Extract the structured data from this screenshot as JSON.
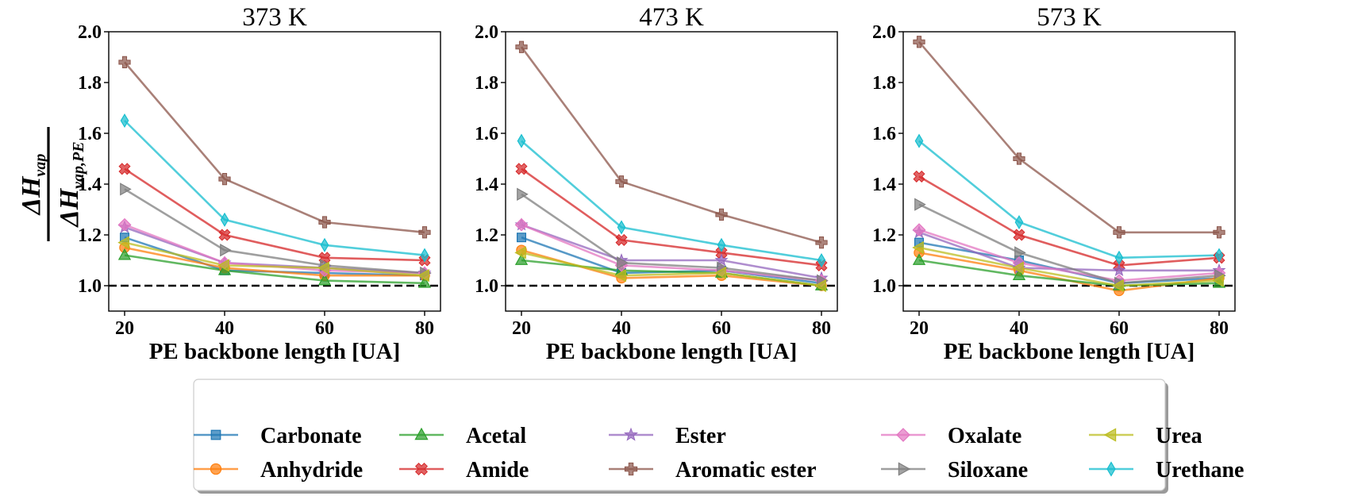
{
  "ylabel": {
    "numerator": {
      "main": "ΔH",
      "sub": "vap"
    },
    "denominator": {
      "main": "ΔH",
      "sub": "vap,PE"
    }
  },
  "chart_data": [
    {
      "type": "line",
      "title": "373 K",
      "xlabel": "PE backbone length [UA]",
      "x": [
        20,
        40,
        60,
        80
      ],
      "xticks": [
        "20",
        "40",
        "60",
        "80"
      ],
      "ylim": [
        0.9,
        2.0
      ],
      "yticks": [
        "1.0",
        "1.2",
        "1.4",
        "1.6",
        "1.8",
        "2.0"
      ],
      "reference_line": 1.0,
      "series": [
        {
          "name": "Carbonate",
          "values": [
            1.19,
            1.06,
            1.05,
            1.04
          ]
        },
        {
          "name": "Anhydride",
          "values": [
            1.15,
            1.07,
            1.04,
            1.04
          ]
        },
        {
          "name": "Acetal",
          "values": [
            1.12,
            1.06,
            1.02,
            1.01
          ]
        },
        {
          "name": "Amide",
          "values": [
            1.46,
            1.2,
            1.11,
            1.1
          ]
        },
        {
          "name": "Ester",
          "values": [
            1.23,
            1.09,
            1.07,
            1.05
          ]
        },
        {
          "name": "Aromatic ester",
          "values": [
            1.88,
            1.42,
            1.25,
            1.21
          ]
        },
        {
          "name": "Oxalate",
          "values": [
            1.24,
            1.09,
            1.06,
            1.05
          ]
        },
        {
          "name": "Siloxane",
          "values": [
            1.38,
            1.14,
            1.08,
            1.05
          ]
        },
        {
          "name": "Urea",
          "values": [
            1.17,
            1.08,
            1.07,
            1.04
          ]
        },
        {
          "name": "Urethane",
          "values": [
            1.65,
            1.26,
            1.16,
            1.12
          ]
        }
      ]
    },
    {
      "type": "line",
      "title": "473 K",
      "xlabel": "PE backbone length [UA]",
      "x": [
        20,
        40,
        60,
        80
      ],
      "xticks": [
        "20",
        "40",
        "60",
        "80"
      ],
      "ylim": [
        0.9,
        2.0
      ],
      "yticks": [
        "1.0",
        "1.2",
        "1.4",
        "1.6",
        "1.8",
        "2.0"
      ],
      "reference_line": 1.0,
      "series": [
        {
          "name": "Carbonate",
          "values": [
            1.19,
            1.05,
            1.06,
            1.01
          ]
        },
        {
          "name": "Anhydride",
          "values": [
            1.14,
            1.03,
            1.04,
            1.0
          ]
        },
        {
          "name": "Acetal",
          "values": [
            1.1,
            1.06,
            1.05,
            1.0
          ]
        },
        {
          "name": "Amide",
          "values": [
            1.46,
            1.18,
            1.13,
            1.08
          ]
        },
        {
          "name": "Ester",
          "values": [
            1.24,
            1.1,
            1.1,
            1.03
          ]
        },
        {
          "name": "Aromatic ester",
          "values": [
            1.94,
            1.41,
            1.28,
            1.17
          ]
        },
        {
          "name": "Oxalate",
          "values": [
            1.24,
            1.08,
            1.06,
            1.02
          ]
        },
        {
          "name": "Siloxane",
          "values": [
            1.36,
            1.09,
            1.07,
            1.02
          ]
        },
        {
          "name": "Urea",
          "values": [
            1.13,
            1.04,
            1.05,
            1.0
          ]
        },
        {
          "name": "Urethane",
          "values": [
            1.57,
            1.23,
            1.16,
            1.1
          ]
        }
      ]
    },
    {
      "type": "line",
      "title": "573 K",
      "xlabel": "PE backbone length [UA]",
      "x": [
        20,
        40,
        60,
        80
      ],
      "xticks": [
        "20",
        "40",
        "60",
        "80"
      ],
      "ylim": [
        0.9,
        2.0
      ],
      "yticks": [
        "1.0",
        "1.2",
        "1.4",
        "1.6",
        "1.8",
        "2.0"
      ],
      "reference_line": 1.0,
      "series": [
        {
          "name": "Carbonate",
          "values": [
            1.17,
            1.1,
            1.01,
            1.03
          ]
        },
        {
          "name": "Anhydride",
          "values": [
            1.13,
            1.06,
            0.98,
            1.03
          ]
        },
        {
          "name": "Acetal",
          "values": [
            1.1,
            1.04,
            1.0,
            1.01
          ]
        },
        {
          "name": "Amide",
          "values": [
            1.43,
            1.2,
            1.08,
            1.11
          ]
        },
        {
          "name": "Ester",
          "values": [
            1.21,
            1.07,
            1.06,
            1.06
          ]
        },
        {
          "name": "Aromatic ester",
          "values": [
            1.96,
            1.5,
            1.21,
            1.21
          ]
        },
        {
          "name": "Oxalate",
          "values": [
            1.22,
            1.09,
            1.02,
            1.05
          ]
        },
        {
          "name": "Siloxane",
          "values": [
            1.32,
            1.13,
            1.01,
            1.04
          ]
        },
        {
          "name": "Urea",
          "values": [
            1.15,
            1.07,
            1.0,
            1.02
          ]
        },
        {
          "name": "Urethane",
          "values": [
            1.57,
            1.25,
            1.11,
            1.12
          ]
        }
      ]
    }
  ],
  "legend": {
    "placement": "bottom-center",
    "entries": [
      {
        "name": "Carbonate",
        "color": "#1f77b4",
        "marker": "square"
      },
      {
        "name": "Anhydride",
        "color": "#ff7f0e",
        "marker": "circle"
      },
      {
        "name": "Acetal",
        "color": "#2ca02c",
        "marker": "triangle"
      },
      {
        "name": "Amide",
        "color": "#d62728",
        "marker": "x-cross"
      },
      {
        "name": "Ester",
        "color": "#9467bd",
        "marker": "star"
      },
      {
        "name": "Aromatic ester",
        "color": "#8c564b",
        "marker": "plus"
      },
      {
        "name": "Oxalate",
        "color": "#e377c2",
        "marker": "diamond"
      },
      {
        "name": "Siloxane",
        "color": "#7f7f7f",
        "marker": "triangle-right"
      },
      {
        "name": "Urea",
        "color": "#bcbd22",
        "marker": "triangle-left"
      },
      {
        "name": "Urethane",
        "color": "#17becf",
        "marker": "thin-diamond"
      }
    ]
  }
}
